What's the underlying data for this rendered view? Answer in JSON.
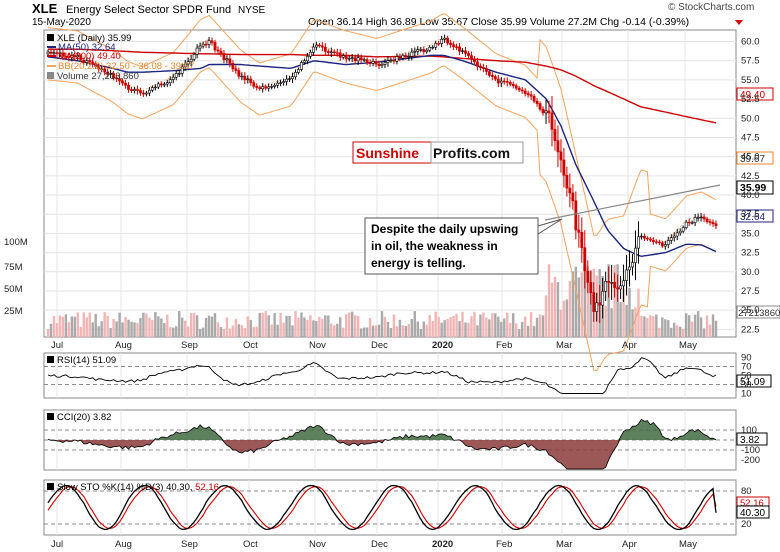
{
  "header": {
    "symbol": "XLE",
    "name": "Energy Select Sector SPDR Fund",
    "exchange": "NYSE",
    "date": "15-May-2020",
    "ohlc": "Open 36.14  High 36.89  Low 35.67  Close 35.99  Volume 27.2M  Chg -0.14 (-0.39%)",
    "brand": "© StockCharts.com"
  },
  "legend": {
    "main": "XLE (Daily) 35.99",
    "ma50": "MA(50) 32.64",
    "ma200": "MA(200) 49.40",
    "bb": "BB(20,2.0) 32.50 - 36.08 - 39.67",
    "volume": "Volume 27,213,860"
  },
  "watermark": {
    "part1": "Sunshine",
    "part2": "Profits.com"
  },
  "annotation": {
    "lines": [
      "Despite the daily upswing",
      "in oil, the weakness in",
      "energy is telling."
    ]
  },
  "value_tags": {
    "ma200": "49.40",
    "bb_upper": "39.67",
    "close": "35.99",
    "ma50": "32.64",
    "volume": "27213860"
  },
  "indicators": {
    "rsi_label": "RSI(14) 51.09",
    "rsi_value": "51.09",
    "cci_label": "CCI(20) 3.82",
    "cci_value": "3.82",
    "sto_label_main": "Slow STO %K(14) %D(3) 40.30,",
    "sto_label_d": "52.16",
    "sto_k_value": "40.30",
    "sto_d_value": "52.16"
  },
  "colors": {
    "up": "#000000",
    "down": "#cc0000",
    "ma50": "#1a237e",
    "ma200": "#cc0000",
    "bb": "#f4a460",
    "volume_up": "#a9a9a9",
    "volume_down": "#f2b5b5",
    "tag_red": "#cc0000",
    "tag_navy": "#1a237e",
    "tag_orange": "#e8842c"
  },
  "chart_data": {
    "type": "line",
    "title": "XLE Energy Select Sector SPDR Fund NYSE",
    "x_axis": {
      "ticks": [
        "Jul",
        "Aug",
        "Sep",
        "Oct",
        "Nov",
        "Dec",
        "2020",
        "Feb",
        "Mar",
        "Apr",
        "May"
      ]
    },
    "price_axis": {
      "ticks": [
        60.0,
        57.5,
        55.0,
        52.5,
        50.0,
        47.5,
        45.0,
        42.5,
        40.0,
        37.5,
        35.0,
        32.5,
        30.0,
        27.5,
        25.0,
        22.5
      ],
      "ylim": [
        21.5,
        61.5
      ]
    },
    "volume_axis": {
      "ticks": [
        "100M",
        "75M",
        "50M",
        "25M"
      ]
    },
    "price_series": {
      "name": "XLE (Daily)",
      "x": [
        "2019-07-01",
        "2019-07-15",
        "2019-08-01",
        "2019-08-08",
        "2019-08-15",
        "2019-08-30",
        "2019-09-12",
        "2019-09-16",
        "2019-10-01",
        "2019-10-10",
        "2019-10-25",
        "2019-11-05",
        "2019-11-20",
        "2019-12-05",
        "2019-12-31",
        "2020-01-06",
        "2020-01-15",
        "2020-01-31",
        "2020-02-14",
        "2020-02-24",
        "2020-03-02",
        "2020-03-09",
        "2020-03-18",
        "2020-03-24",
        "2020-04-01",
        "2020-04-09",
        "2020-04-21",
        "2020-05-01",
        "2020-05-08",
        "2020-05-15"
      ],
      "close": [
        58.4,
        58.0,
        55.5,
        54.0,
        53.3,
        55.2,
        59.5,
        60.0,
        55.5,
        53.8,
        55.0,
        59.5,
        58.0,
        57.0,
        59.3,
        60.3,
        58.5,
        55.0,
        53.5,
        50.5,
        45.0,
        36.5,
        25.5,
        28.0,
        28.5,
        34.5,
        33.5,
        36.5,
        37.0,
        35.99
      ]
    },
    "ma50": [
      58.0,
      57.5,
      56.5,
      56.0,
      56.0,
      56.2,
      56.5,
      57.0,
      57.0,
      56.8,
      56.5,
      57.5,
      57.0,
      57.3,
      58.2,
      58.2,
      57.5,
      56.0,
      55.0,
      52.5,
      49.0,
      44.0,
      39.0,
      35.5,
      33.0,
      32.0,
      32.5,
      33.6,
      33.5,
      32.64
    ],
    "ma200": [
      59.0,
      59.0,
      58.8,
      58.7,
      58.6,
      58.5,
      58.4,
      58.4,
      58.3,
      58.3,
      58.3,
      58.2,
      58.2,
      58.0,
      58.1,
      58.0,
      57.8,
      57.5,
      57.3,
      56.8,
      56.3,
      55.5,
      54.2,
      53.5,
      52.5,
      51.5,
      50.8,
      50.2,
      49.8,
      49.4
    ],
    "bollinger": {
      "upper": 39.67,
      "middle": 36.08,
      "lower": 32.5
    },
    "volume_last": 27213860,
    "rsi": {
      "value": 51.09,
      "levels": [
        90,
        70,
        50,
        30,
        10
      ]
    },
    "cci": {
      "value": 3.82,
      "levels": [
        200,
        100,
        0,
        -100,
        -200
      ]
    },
    "slow_sto": {
      "k": 40.3,
      "d": 52.16,
      "levels": [
        80,
        50,
        20
      ]
    }
  }
}
